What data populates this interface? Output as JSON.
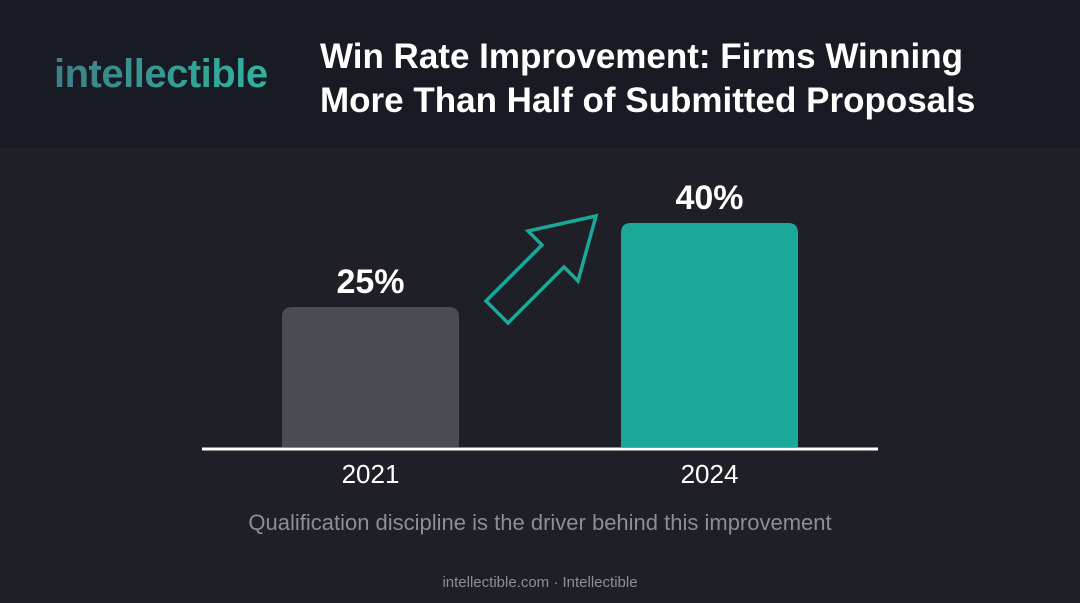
{
  "header": {
    "logo": "intellectible",
    "title": "Win Rate Improvement: Firms Winning\nMore Than Half of Submitted Proposals"
  },
  "chart_data": {
    "type": "bar",
    "categories": [
      "2021",
      "2024"
    ],
    "values": [
      25,
      40
    ],
    "value_labels": [
      "25%",
      "40%"
    ],
    "ylim": [
      0,
      40
    ],
    "grid": false,
    "title": "Win Rate Improvement: Firms Winning More Than Half of Submitted Proposals",
    "xlabel": "",
    "ylabel": "",
    "bar_colors": [
      "#4a4b53",
      "#1aa898"
    ],
    "annotation": "up-arrow-icon"
  },
  "subtitle": "Qualification discipline is the driver behind this improvement",
  "footer": "intellectible.com · Intellectible",
  "colors": {
    "background": "#1e1f27",
    "header_background": "#181a24",
    "accent": "#1aa898",
    "muted_bar": "#4a4b53",
    "baseline": "#ffffff",
    "muted_text": "#8c8e96"
  }
}
